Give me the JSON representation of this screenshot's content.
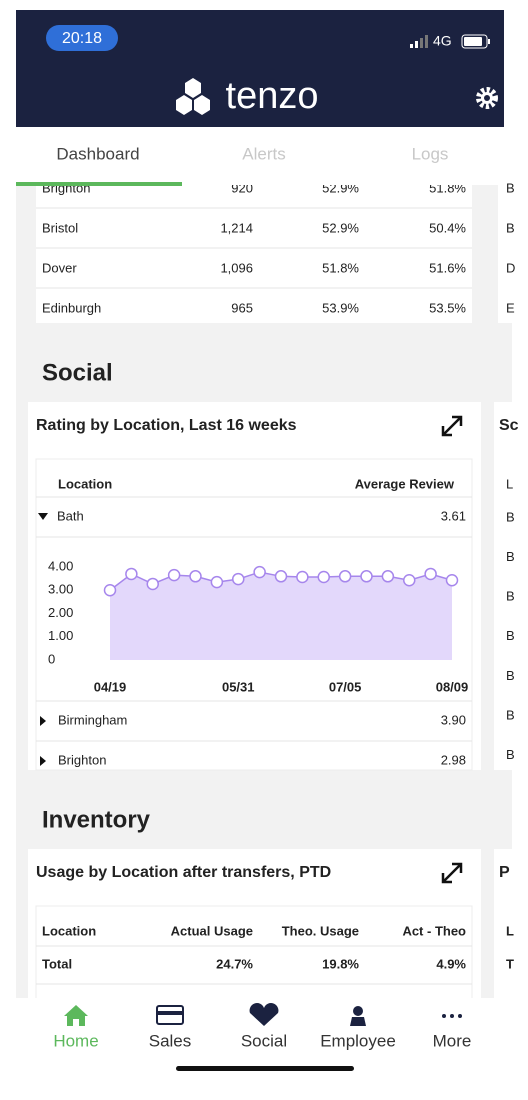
{
  "status_bar": {
    "time": "20:18",
    "network": "4G"
  },
  "header": {
    "brand": "tenzo"
  },
  "tabs": [
    "Dashboard",
    "Alerts",
    "Logs"
  ],
  "top_table": {
    "rows": [
      [
        "Brighton",
        "920",
        "52.9%",
        "51.8%"
      ],
      [
        "Bristol",
        "1,214",
        "52.9%",
        "50.4%"
      ],
      [
        "Dover",
        "1,096",
        "51.8%",
        "51.6%"
      ],
      [
        "Edinburgh",
        "965",
        "53.9%",
        "53.5%"
      ]
    ],
    "peek": [
      "B",
      "B",
      "D",
      "E"
    ]
  },
  "social": {
    "heading": "Social",
    "title": "Rating by Location, Last 16 weeks",
    "columns": [
      "Location",
      "Average Review"
    ],
    "rows": [
      [
        "Bath",
        "3.61"
      ],
      [
        "Birmingham",
        "3.90"
      ],
      [
        "Brighton",
        "2.98"
      ]
    ],
    "peek_title": "Sc",
    "peek_rows": [
      "L",
      "B",
      "B",
      "B",
      "B",
      "B",
      "B",
      "B"
    ]
  },
  "chart_data": {
    "type": "area",
    "categories": [
      "04/19",
      null,
      null,
      null,
      null,
      null,
      "05/31",
      null,
      null,
      null,
      null,
      "07/05",
      null,
      null,
      null,
      null,
      "08/09"
    ],
    "values": [
      3.0,
      3.7,
      3.27,
      3.65,
      3.6,
      3.35,
      3.48,
      3.78,
      3.6,
      3.57,
      3.57,
      3.6,
      3.6,
      3.6,
      3.43,
      3.7,
      3.43
    ],
    "color": "#a686ec",
    "fill": "#e3d8fb",
    "ylim": [
      0,
      4
    ],
    "yticks": [
      0,
      {
        "value": 1,
        "label": "1.00"
      },
      {
        "value": 2,
        "label": "2.00"
      },
      {
        "value": 3,
        "label": "3.00"
      },
      {
        "value": 4,
        "label": "4.00"
      }
    ]
  },
  "inventory": {
    "heading": "Inventory",
    "title": "Usage by Location after transfers, PTD",
    "columns": [
      "Location",
      "Actual Usage",
      "Theo. Usage",
      "Act - Theo"
    ],
    "rows": [
      [
        "Total",
        "24.7%",
        "19.8%",
        "4.9%"
      ]
    ],
    "peek_title": "P",
    "peek_rows": [
      "L",
      "T"
    ]
  },
  "nav": [
    "Home",
    "Sales",
    "Social",
    "Employee",
    "More"
  ]
}
